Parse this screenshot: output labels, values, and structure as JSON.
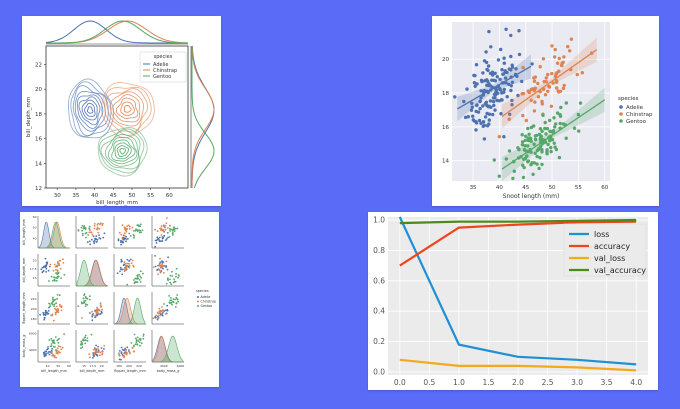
{
  "palette": {
    "page_background": "#5a6cf7",
    "adelie": "#4c72b0",
    "chinstrap": "#dd8452",
    "gentoo": "#55a868",
    "loss": "#1f8fd6",
    "accuracy": "#f0441c",
    "val_loss": "#f2a91c",
    "val_accuracy": "#4e8a1a",
    "seaborn_plot_bg": "#eaeaf2",
    "ggplot_plot_bg": "#ebebeb"
  },
  "chart_data": [
    {
      "id": "kde_joint",
      "type": "kde_contour_joint",
      "xlabel": "bill_length_mm",
      "ylabel": "bill_depth_mm",
      "xlim": [
        27,
        65
      ],
      "ylim": [
        12,
        23.5
      ],
      "xticks": [
        30,
        35,
        40,
        45,
        50,
        55,
        60
      ],
      "yticks": [
        12,
        14,
        16,
        18,
        20,
        22
      ],
      "legend": {
        "title": "species",
        "position": "top-right",
        "entries": [
          "Adelie",
          "Chinstrap",
          "Gentoo"
        ]
      },
      "series": [
        {
          "name": "Adelie",
          "color_key": "adelie",
          "center": [
            38.8,
            18.3
          ],
          "spread": [
            2.7,
            1.2
          ],
          "tilt": 0.2,
          "levels": 9
        },
        {
          "name": "Chinstrap",
          "color_key": "chinstrap",
          "center": [
            48.8,
            18.4
          ],
          "spread": [
            3.2,
            1.1
          ],
          "tilt": 0.45,
          "levels": 8
        },
        {
          "name": "Gentoo",
          "color_key": "gentoo",
          "center": [
            47.5,
            15.0
          ],
          "spread": [
            3.0,
            0.95
          ],
          "tilt": 0.55,
          "levels": 9
        }
      ]
    },
    {
      "id": "regression",
      "type": "scatter_regression",
      "xlabel": "Snoot length (mm)",
      "ylabel": "",
      "xlim": [
        31,
        61
      ],
      "ylim": [
        12.8,
        22.2
      ],
      "xticks": [
        35,
        40,
        45,
        50,
        55,
        60
      ],
      "yticks": [
        14,
        16,
        18,
        20
      ],
      "grid": true,
      "legend": {
        "title": "species",
        "position": "right",
        "entries": [
          "Adelie",
          "Chinstrap",
          "Gentoo"
        ]
      },
      "series": [
        {
          "name": "Adelie",
          "color_key": "adelie",
          "n": 150,
          "x_mean": 38.8,
          "x_sd": 2.7,
          "y_sd": 1.15,
          "slope": 0.18,
          "intercept": 11.3,
          "fit_x": [
            32,
            46
          ]
        },
        {
          "name": "Chinstrap",
          "color_key": "chinstrap",
          "n": 68,
          "x_mean": 49.0,
          "x_sd": 3.2,
          "y_sd": 0.8,
          "slope": 0.22,
          "intercept": 7.7,
          "fit_x": [
            40.5,
            58.5
          ]
        },
        {
          "name": "Gentoo",
          "color_key": "gentoo",
          "n": 123,
          "x_mean": 47.5,
          "x_sd": 3.0,
          "y_sd": 0.75,
          "slope": 0.21,
          "intercept": 5.0,
          "fit_x": [
            40.5,
            60
          ]
        }
      ]
    },
    {
      "id": "pairplot",
      "type": "pairplot",
      "variables": [
        "bill_length_mm",
        "bill_depth_mm",
        "flipper_length_mm",
        "body_mass_g"
      ],
      "ticks": [
        [
          40,
          50,
          60
        ],
        [
          15.0,
          17.5,
          20.0
        ],
        [
          180,
          200,
          220
        ],
        [
          4000,
          6000
        ]
      ],
      "legend": {
        "title": "species",
        "position": "right",
        "entries": [
          "Adelie",
          "Chinstrap",
          "Gentoo"
        ]
      },
      "species_means": {
        "Adelie": [
          38.8,
          18.3,
          190,
          3700
        ],
        "Chinstrap": [
          48.8,
          18.4,
          196,
          3733
        ],
        "Gentoo": [
          47.5,
          15.0,
          217,
          5076
        ]
      },
      "ranges": [
        [
          32,
          60
        ],
        [
          13,
          21.5
        ],
        [
          172,
          232
        ],
        [
          2700,
          6300
        ]
      ]
    },
    {
      "id": "training",
      "type": "line",
      "x": [
        0,
        1,
        2,
        3,
        4
      ],
      "xlim": [
        -0.2,
        4.2
      ],
      "ylim": [
        -0.02,
        1.02
      ],
      "xticks": [
        "0.0",
        "0.5",
        "1.0",
        "1.5",
        "2.0",
        "2.5",
        "3.0",
        "3.5",
        "4.0"
      ],
      "yticks": [
        "0.0",
        "0.2",
        "0.4",
        "0.6",
        "0.8",
        "1.0"
      ],
      "grid": true,
      "legend_position": "top-right",
      "series": [
        {
          "name": "loss",
          "color_key": "loss",
          "values": [
            1.02,
            0.18,
            0.1,
            0.08,
            0.05
          ]
        },
        {
          "name": "accuracy",
          "color_key": "accuracy",
          "values": [
            0.7,
            0.95,
            0.97,
            0.985,
            0.99
          ]
        },
        {
          "name": "val_loss",
          "color_key": "val_loss",
          "values": [
            0.08,
            0.04,
            0.04,
            0.03,
            0.01
          ]
        },
        {
          "name": "val_accuracy",
          "color_key": "val_accuracy",
          "values": [
            0.98,
            0.99,
            0.99,
            0.995,
            1.0
          ]
        }
      ]
    }
  ]
}
